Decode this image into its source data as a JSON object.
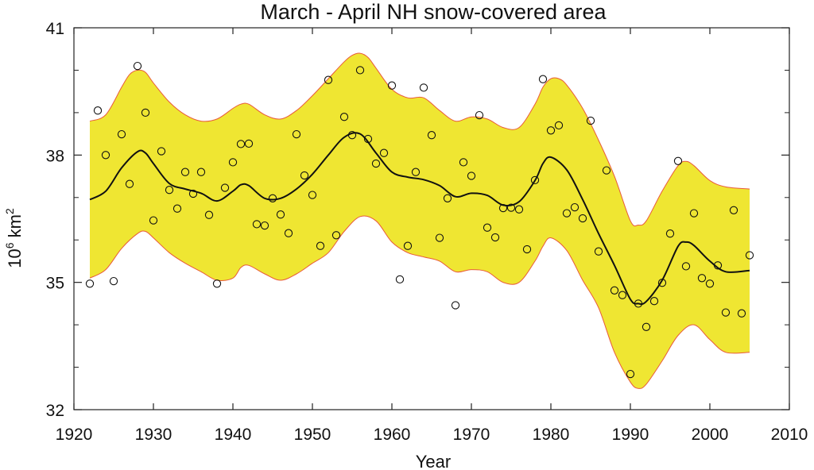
{
  "chart_data": {
    "type": "scatter",
    "title": "March - April NH snow-covered area",
    "xlabel": "Year",
    "ylabel": {
      "base": "10",
      "exp": "6",
      "unit": " km",
      "unit_exp": "2"
    },
    "xlim": [
      1920,
      2010
    ],
    "ylim": [
      32,
      41
    ],
    "x_ticks": [
      1920,
      1930,
      1940,
      1950,
      1960,
      1970,
      1980,
      1990,
      2000,
      2010
    ],
    "x_tick_labels": [
      "1920",
      "1930",
      "1940",
      "1950",
      "1960",
      "1970",
      "1980",
      "1990",
      "2000",
      "2010"
    ],
    "y_ticks": [
      32,
      35,
      38,
      41
    ],
    "y_tick_labels": [
      "32",
      "35",
      "38",
      "41"
    ],
    "y_minor_ticks": [
      33,
      34,
      36,
      37,
      39,
      40
    ],
    "grid": false,
    "colors": {
      "band_fill": "#efe632",
      "band_edge": "#e85a3a",
      "trend": "#111111",
      "points": "#111111"
    },
    "observations": {
      "x": [
        1922,
        1923,
        1924,
        1925,
        1926,
        1927,
        1928,
        1929,
        1930,
        1931,
        1932,
        1933,
        1934,
        1935,
        1936,
        1937,
        1938,
        1939,
        1940,
        1941,
        1942,
        1943,
        1944,
        1945,
        1946,
        1947,
        1948,
        1949,
        1950,
        1951,
        1952,
        1953,
        1954,
        1955,
        1956,
        1957,
        1958,
        1959,
        1960,
        1961,
        1962,
        1963,
        1964,
        1965,
        1966,
        1967,
        1968,
        1969,
        1970,
        1971,
        1972,
        1973,
        1974,
        1975,
        1976,
        1977,
        1978,
        1979,
        1980,
        1981,
        1982,
        1983,
        1984,
        1985,
        1986,
        1987,
        1988,
        1989,
        1990,
        1991,
        1992,
        1993,
        1994,
        1995,
        1996,
        1997,
        1998,
        1999,
        2000,
        2001,
        2002,
        2003,
        2004,
        2005
      ],
      "y": [
        34.97,
        39.05,
        38.0,
        35.03,
        38.49,
        37.32,
        40.1,
        39.0,
        36.46,
        38.09,
        37.18,
        36.74,
        37.6,
        37.09,
        37.6,
        36.59,
        34.97,
        37.23,
        37.83,
        38.26,
        38.27,
        36.37,
        36.34,
        36.98,
        36.6,
        36.16,
        38.49,
        37.52,
        37.06,
        35.86,
        39.77,
        36.11,
        38.9,
        38.47,
        40.0,
        38.38,
        37.8,
        38.05,
        39.64,
        35.07,
        35.86,
        37.6,
        39.59,
        38.47,
        36.05,
        36.98,
        34.46,
        37.83,
        37.51,
        38.94,
        36.29,
        36.06,
        36.75,
        36.76,
        36.72,
        35.78,
        37.41,
        39.79,
        38.58,
        38.7,
        36.63,
        36.77,
        36.51,
        38.81,
        35.73,
        37.64,
        34.81,
        34.7,
        32.84,
        34.5,
        33.95,
        34.56,
        34.99,
        36.15,
        37.86,
        35.38,
        36.63,
        35.1,
        34.97,
        35.4,
        34.29,
        36.7,
        34.27,
        35.64
      ]
    },
    "trend": {
      "x": [
        1922,
        1924,
        1926,
        1928,
        1929,
        1930,
        1932,
        1934,
        1936,
        1938,
        1940,
        1941,
        1942,
        1944,
        1946,
        1948,
        1950,
        1952,
        1954,
        1956,
        1958,
        1960,
        1962,
        1964,
        1966,
        1968,
        1970,
        1972,
        1974,
        1976,
        1978,
        1979,
        1980,
        1982,
        1984,
        1986,
        1988,
        1990,
        1991,
        1992,
        1994,
        1996,
        1997,
        1998,
        2000,
        2002,
        2005
      ],
      "y": [
        36.95,
        37.15,
        37.7,
        38.08,
        38.05,
        37.8,
        37.33,
        37.2,
        37.1,
        36.92,
        37.15,
        37.3,
        37.28,
        36.98,
        36.98,
        37.2,
        37.55,
        38.0,
        38.42,
        38.5,
        38.05,
        37.6,
        37.48,
        37.42,
        37.28,
        37.02,
        37.1,
        37.05,
        36.82,
        36.9,
        37.4,
        37.8,
        37.95,
        37.65,
        36.95,
        36.15,
        35.4,
        34.6,
        34.5,
        34.55,
        35.05,
        35.85,
        35.95,
        35.87,
        35.5,
        35.25,
        35.28
      ]
    },
    "band_upper": {
      "x": [
        1922,
        1924,
        1926,
        1927,
        1928,
        1929,
        1930,
        1932,
        1934,
        1936,
        1938,
        1940,
        1941,
        1942,
        1944,
        1946,
        1948,
        1950,
        1952,
        1954,
        1955,
        1956,
        1957,
        1958,
        1960,
        1962,
        1964,
        1966,
        1968,
        1970,
        1972,
        1974,
        1976,
        1978,
        1979,
        1980,
        1981,
        1982,
        1984,
        1986,
        1988,
        1990,
        1991,
        1992,
        1994,
        1996,
        1997,
        1998,
        2000,
        2002,
        2005
      ],
      "y": [
        38.8,
        38.95,
        39.6,
        39.9,
        40.0,
        39.95,
        39.7,
        39.25,
        38.95,
        38.8,
        38.85,
        39.1,
        39.2,
        39.2,
        38.95,
        38.85,
        39.05,
        39.4,
        39.8,
        40.2,
        40.35,
        40.4,
        40.3,
        40.05,
        39.55,
        39.35,
        39.35,
        39.05,
        38.8,
        38.9,
        38.85,
        38.65,
        38.65,
        39.2,
        39.6,
        39.8,
        39.8,
        39.65,
        39.1,
        38.35,
        37.5,
        36.45,
        36.35,
        36.45,
        37.15,
        37.75,
        37.85,
        37.75,
        37.4,
        37.25,
        37.2
      ]
    },
    "band_lower": {
      "x": [
        1922,
        1924,
        1926,
        1928,
        1929,
        1930,
        1932,
        1934,
        1936,
        1938,
        1940,
        1941,
        1942,
        1944,
        1946,
        1948,
        1950,
        1952,
        1954,
        1956,
        1958,
        1960,
        1962,
        1964,
        1966,
        1968,
        1970,
        1972,
        1974,
        1976,
        1978,
        1979,
        1980,
        1982,
        1984,
        1986,
        1988,
        1990,
        1991,
        1992,
        1994,
        1996,
        1998,
        2000,
        2002,
        2005
      ],
      "y": [
        35.1,
        35.3,
        35.8,
        36.15,
        36.2,
        36.05,
        35.7,
        35.45,
        35.25,
        35.05,
        35.1,
        35.35,
        35.4,
        35.2,
        35.05,
        35.2,
        35.45,
        35.7,
        36.2,
        36.55,
        36.45,
        35.95,
        35.7,
        35.6,
        35.5,
        35.25,
        35.3,
        35.25,
        35.0,
        35.0,
        35.5,
        35.85,
        36.05,
        35.75,
        35.05,
        34.4,
        33.35,
        32.65,
        32.5,
        32.6,
        33.15,
        33.75,
        34.0,
        33.65,
        33.35,
        33.35
      ]
    }
  }
}
